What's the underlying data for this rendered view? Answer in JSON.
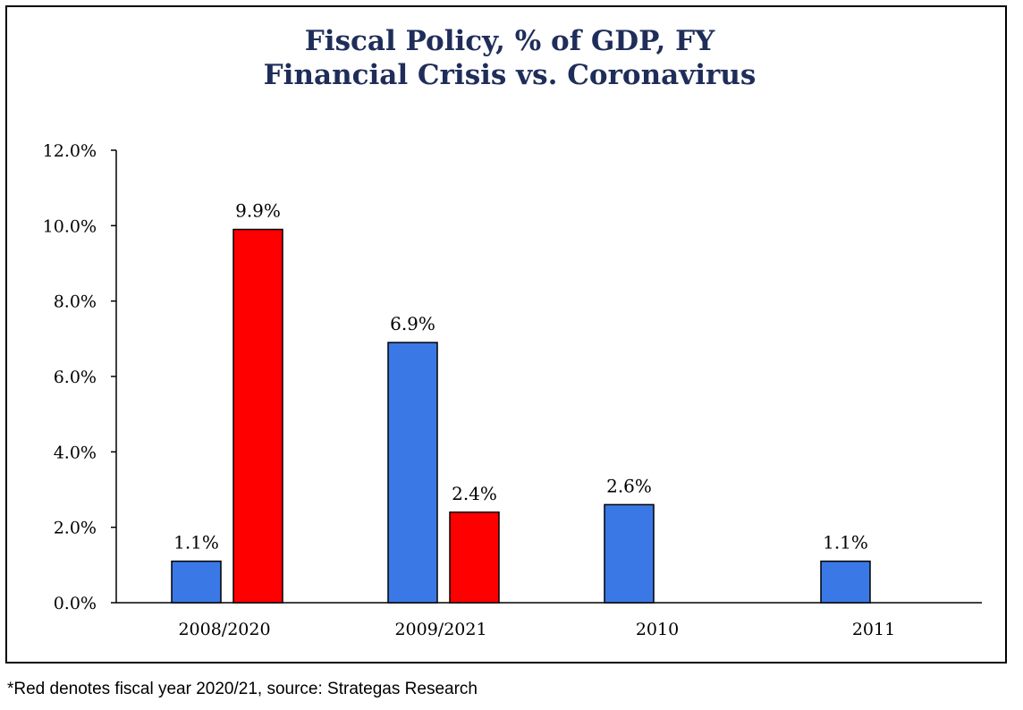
{
  "chart_data": {
    "type": "bar",
    "title": [
      "Fiscal Policy, % of GDP, FY",
      "Financial Crisis vs. Coronavirus"
    ],
    "categories": [
      "2008/2020",
      "2009/2021",
      "2010",
      "2011"
    ],
    "series": [
      {
        "name": "Financial Crisis",
        "color": "#3a78e6",
        "values": [
          1.1,
          6.9,
          2.6,
          1.1
        ],
        "labels": [
          "1.1%",
          "6.9%",
          "2.6%",
          "1.1%"
        ]
      },
      {
        "name": "Coronavirus",
        "color": "#ff0000",
        "values": [
          9.9,
          2.4,
          null,
          null
        ],
        "labels": [
          "9.9%",
          "2.4%",
          null,
          null
        ]
      }
    ],
    "ylim": [
      0,
      12
    ],
    "yticks": [
      0,
      2,
      4,
      6,
      8,
      10,
      12
    ],
    "ytick_labels": [
      "0.0%",
      "2.0%",
      "4.0%",
      "6.0%",
      "8.0%",
      "10.0%",
      "12.0%"
    ],
    "xlabel": "",
    "ylabel": "",
    "grid": false,
    "legend": "none"
  },
  "footnote": "*Red denotes fiscal year 2020/21, source: Strategas Research"
}
